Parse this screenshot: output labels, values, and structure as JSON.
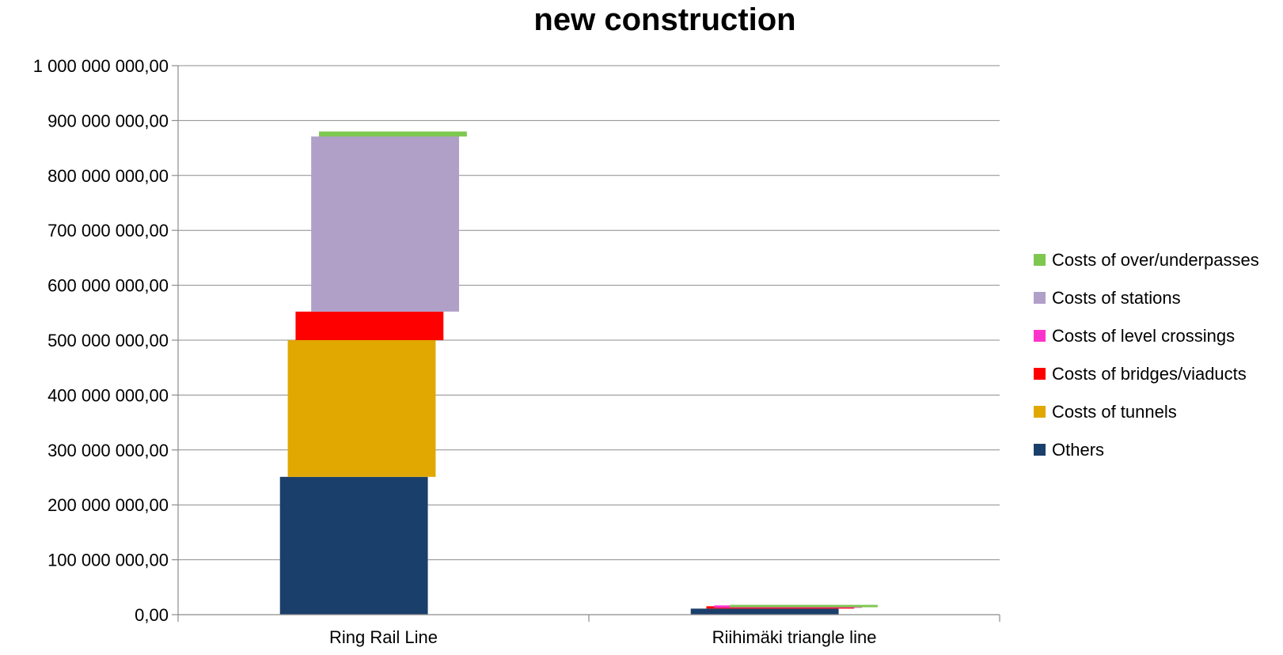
{
  "chart_data": {
    "type": "bar",
    "stacked": true,
    "title": "new construction",
    "xlabel": "",
    "ylabel": "",
    "categories": [
      "Ring Rail Line",
      "Riihimäki triangle line"
    ],
    "ylim": [
      0,
      1000000000
    ],
    "yticks": [
      0,
      100000000,
      200000000,
      300000000,
      400000000,
      500000000,
      600000000,
      700000000,
      800000000,
      900000000,
      1000000000
    ],
    "ytick_labels": [
      "0,00",
      "100 000 000,00",
      "200 000 000,00",
      "300 000 000,00",
      "400 000 000,00",
      "500 000 000,00",
      "600 000 000,00",
      "700 000 000,00",
      "800 000 000,00",
      "900 000 000,00",
      "1 000 000 000,00"
    ],
    "grid": true,
    "legend_position": "right",
    "series": [
      {
        "name": "Others",
        "color": "#1b3f6b",
        "values": [
          251000000,
          11000000
        ]
      },
      {
        "name": "Costs of tunnels",
        "color": "#e0a800",
        "values": [
          249000000,
          0
        ]
      },
      {
        "name": "Costs of bridges/viaducts",
        "color": "#ff0000",
        "values": [
          52000000,
          1500000
        ]
      },
      {
        "name": "Costs of level crossings",
        "color": "#ff33cc",
        "values": [
          0,
          1000000
        ]
      },
      {
        "name": "Costs of stations",
        "color": "#b0a0c8",
        "values": [
          319000000,
          0
        ]
      },
      {
        "name": "Costs of over/underpasses",
        "color": "#7ec850",
        "values": [
          9000000,
          1500000
        ]
      }
    ]
  }
}
